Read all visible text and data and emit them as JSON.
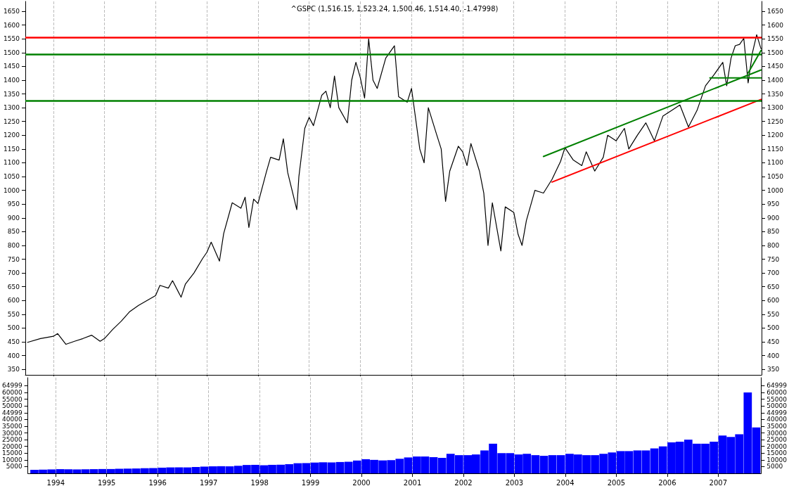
{
  "chart_data": [
    {
      "type": "line",
      "title": "^GSPC (1,516.15, 1,523.24, 1,500.46, 1,514.40, -1.47998)",
      "tick_labels": "y",
      "grid": "x",
      "xlim": [
        "1993-06-15",
        "2007-11-05"
      ],
      "xticks": [
        {
          "value": "1994",
          "label": null
        },
        {
          "value": "1995",
          "label": null
        },
        {
          "value": "1996",
          "label": null
        },
        {
          "value": "1997",
          "label": null
        },
        {
          "value": "1998",
          "label": null
        },
        {
          "value": "1999",
          "label": null
        },
        {
          "value": "2000",
          "label": null
        },
        {
          "value": "2001",
          "label": null
        },
        {
          "value": "2002",
          "label": null
        },
        {
          "value": "2003",
          "label": null
        },
        {
          "value": "2004",
          "label": null
        },
        {
          "value": "2005",
          "label": null
        },
        {
          "value": "2006",
          "label": null
        },
        {
          "value": "2007",
          "label": null
        }
      ],
      "ylim": [
        330,
        1686
      ],
      "yticks": [
        350,
        400,
        450,
        500,
        550,
        600,
        650,
        700,
        750,
        800,
        850,
        900,
        950,
        1000,
        1050,
        1100,
        1150,
        1200,
        1250,
        1300,
        1350,
        1400,
        1450,
        1500,
        1550,
        1600,
        1650
      ],
      "y2lim": [
        330,
        1686
      ],
      "y2ticks": [
        350,
        400,
        450,
        500,
        550,
        600,
        650,
        700,
        750,
        800,
        850,
        900,
        950,
        1000,
        1050,
        1100,
        1150,
        1200,
        1250,
        1300,
        1350,
        1400,
        1450,
        1500,
        1550,
        1600,
        1650
      ],
      "ref_lines": [
        {
          "axis": "y",
          "value": 1554,
          "color": "#ff0000"
        },
        {
          "axis": "y",
          "value": 1494,
          "color": "#008000"
        },
        {
          "axis": "y",
          "value": 1326,
          "color": "#008000"
        }
      ],
      "series": [
        {
          "color": "#000000",
          "x": [
            "1993-07",
            "1993-10",
            "1994-01",
            "1994-02",
            "1994-04",
            "1994-06",
            "1994-08",
            "1994-10",
            "1994-12",
            "1995-01",
            "1995-03",
            "1995-05",
            "1995-07",
            "1995-09",
            "1995-11",
            "1996-01",
            "1996-02",
            "1996-04",
            "1996-05",
            "1996-07",
            "1996-08",
            "1996-10",
            "1996-12",
            "1997-01",
            "1997-02",
            "1997-04",
            "1997-05",
            "1997-07",
            "1997-09",
            "1997-10",
            "1997-10-28",
            "1997-12",
            "1998-01",
            "1998-03",
            "1998-04",
            "1998-06",
            "1998-07",
            "1998-08",
            "1998-10-05",
            "1998-10-20",
            "1998-12",
            "1999-01",
            "1999-02",
            "1999-04",
            "1999-05",
            "1999-06",
            "1999-07",
            "1999-08",
            "1999-10",
            "1999-11",
            "1999-12",
            "2000-01",
            "2000-02",
            "2000-03",
            "2000-04",
            "2000-05",
            "2000-07",
            "2000-09",
            "2000-10",
            "2000-12",
            "2001-01",
            "2001-03",
            "2001-04",
            "2001-05",
            "2001-07",
            "2001-08",
            "2001-09",
            "2001-10",
            "2001-12",
            "2002-01",
            "2002-02",
            "2002-03",
            "2002-05",
            "2002-06",
            "2002-07",
            "2002-08",
            "2002-10",
            "2002-11",
            "2003-01",
            "2003-02",
            "2003-03",
            "2003-04",
            "2003-06",
            "2003-08",
            "2003-10",
            "2003-12",
            "2004-01",
            "2004-03",
            "2004-05",
            "2004-06",
            "2004-08",
            "2004-10",
            "2004-11",
            "2005-01",
            "2005-03",
            "2005-04",
            "2005-06",
            "2005-08",
            "2005-10",
            "2005-12",
            "2006-02",
            "2006-04",
            "2006-06",
            "2006-08",
            "2006-10",
            "2006-12",
            "2007-02",
            "2007-03",
            "2007-04",
            "2007-05",
            "2007-06",
            "2007-07",
            "2007-08",
            "2007-09",
            "2007-10",
            "2007-11"
          ],
          "values": [
            448,
            462,
            470,
            480,
            441,
            452,
            462,
            474,
            452,
            462,
            495,
            525,
            560,
            582,
            600,
            618,
            655,
            645,
            672,
            612,
            660,
            700,
            752,
            775,
            812,
            743,
            843,
            955,
            935,
            975,
            865,
            968,
            952,
            1065,
            1120,
            1110,
            1187,
            1065,
            930,
            1050,
            1225,
            1265,
            1235,
            1345,
            1360,
            1300,
            1415,
            1300,
            1245,
            1400,
            1465,
            1410,
            1335,
            1550,
            1400,
            1370,
            1480,
            1525,
            1340,
            1320,
            1370,
            1150,
            1100,
            1300,
            1200,
            1150,
            960,
            1070,
            1160,
            1140,
            1090,
            1170,
            1070,
            990,
            800,
            955,
            780,
            940,
            920,
            840,
            800,
            890,
            1000,
            990,
            1040,
            1105,
            1155,
            1110,
            1090,
            1140,
            1070,
            1120,
            1200,
            1180,
            1225,
            1150,
            1200,
            1245,
            1180,
            1270,
            1290,
            1310,
            1230,
            1290,
            1380,
            1420,
            1465,
            1380,
            1480,
            1525,
            1530,
            1552,
            1390,
            1500,
            1565,
            1514
          ]
        },
        {
          "color": "#008000",
          "x": [
            "2003-08",
            "2007-11"
          ],
          "values": [
            1123,
            1437
          ]
        },
        {
          "color": "#ff0000",
          "x": [
            "2003-10",
            "2007-11"
          ],
          "values": [
            1030,
            1330
          ]
        },
        {
          "color": "#008000",
          "x": [
            "2006-11",
            "2007-11"
          ],
          "values": [
            1408,
            1408
          ]
        },
        {
          "color": "#008000",
          "x": [
            "2007-08",
            "2007-11"
          ],
          "values": [
            1426,
            1508
          ]
        }
      ]
    },
    {
      "type": "bar",
      "grid": "x",
      "xlim": [
        "1993-06-15",
        "2007-11-05"
      ],
      "xticks": [
        {
          "value": "1994",
          "label": "1994"
        },
        {
          "value": "1995",
          "label": "1995"
        },
        {
          "value": "1996",
          "label": "1996"
        },
        {
          "value": "1997",
          "label": "1997"
        },
        {
          "value": "1998",
          "label": "1998"
        },
        {
          "value": "1999",
          "label": "1999"
        },
        {
          "value": "2000",
          "label": "2000"
        },
        {
          "value": "2001",
          "label": "2001"
        },
        {
          "value": "2002",
          "label": "2002"
        },
        {
          "value": "2003",
          "label": "2003"
        },
        {
          "value": "2004",
          "label": "2004"
        },
        {
          "value": "2005",
          "label": "2005"
        },
        {
          "value": "2006",
          "label": "2006"
        },
        {
          "value": "2007",
          "label": "2007"
        }
      ],
      "ylim": [
        0,
        71000
      ],
      "yticks": [
        5000,
        10000,
        15000,
        20000,
        25000,
        30000,
        35000,
        40000,
        44999,
        50000,
        55000,
        60000,
        64999
      ],
      "y2lim": [
        0,
        71000
      ],
      "y2ticks": [
        5000,
        10000,
        15000,
        20000,
        25000,
        30000,
        35000,
        40000,
        44999,
        50000,
        55000,
        60000,
        64999
      ],
      "series": [
        {
          "color": "#0000ff",
          "x": [
            "1993-08",
            "1993-10",
            "1993-12",
            "1994-02",
            "1994-04",
            "1994-06",
            "1994-08",
            "1994-10",
            "1994-12",
            "1995-02",
            "1995-04",
            "1995-06",
            "1995-08",
            "1995-10",
            "1995-12",
            "1996-02",
            "1996-04",
            "1996-06",
            "1996-08",
            "1996-10",
            "1996-12",
            "1997-02",
            "1997-04",
            "1997-06",
            "1997-08",
            "1997-10",
            "1997-12",
            "1998-02",
            "1998-04",
            "1998-06",
            "1998-08",
            "1998-10",
            "1998-12",
            "1999-02",
            "1999-04",
            "1999-06",
            "1999-08",
            "1999-10",
            "1999-12",
            "2000-02",
            "2000-04",
            "2000-06",
            "2000-08",
            "2000-10",
            "2000-12",
            "2001-02",
            "2001-04",
            "2001-06",
            "2001-08",
            "2001-10",
            "2001-12",
            "2002-02",
            "2002-04",
            "2002-06",
            "2002-08",
            "2002-10",
            "2002-12",
            "2003-02",
            "2003-04",
            "2003-06",
            "2003-08",
            "2003-10",
            "2003-12",
            "2004-02",
            "2004-04",
            "2004-06",
            "2004-08",
            "2004-10",
            "2004-12",
            "2005-02",
            "2005-04",
            "2005-06",
            "2005-08",
            "2005-10",
            "2005-12",
            "2006-02",
            "2006-04",
            "2006-06",
            "2006-08",
            "2006-10",
            "2006-12",
            "2007-02",
            "2007-04",
            "2007-06",
            "2007-08",
            "2007-10"
          ],
          "values": [
            2600,
            2800,
            2900,
            3100,
            3000,
            2900,
            3000,
            3100,
            3200,
            3200,
            3400,
            3500,
            3600,
            3800,
            3900,
            4200,
            4400,
            4500,
            4400,
            4700,
            5000,
            5200,
            5300,
            5200,
            5600,
            6200,
            6300,
            6000,
            6300,
            6400,
            6800,
            7500,
            7600,
            8000,
            8200,
            8100,
            8400,
            8600,
            9500,
            10500,
            10000,
            9600,
            9800,
            10800,
            11800,
            12500,
            12500,
            12000,
            11500,
            14500,
            13500,
            13500,
            14000,
            17000,
            22000,
            15000,
            15000,
            14000,
            14500,
            13500,
            13000,
            13500,
            13500,
            14500,
            14000,
            13500,
            13500,
            14500,
            15500,
            16500,
            16500,
            17000,
            17000,
            18500,
            20000,
            23000,
            23500,
            25000,
            22000,
            22000,
            23500,
            28000,
            27000,
            29000,
            60000,
            34000
          ]
        }
      ]
    }
  ]
}
